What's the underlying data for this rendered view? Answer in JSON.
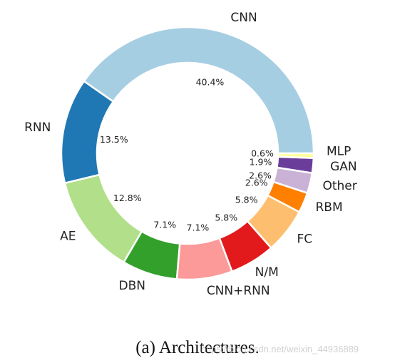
{
  "caption": "(a) Architectures.",
  "watermark": "https://blog.csdn.net/weixin_44936889",
  "chart_data": {
    "type": "pie",
    "subtype": "donut",
    "title": "",
    "start_angle_deg": 0,
    "direction": "counterclockwise",
    "slices": [
      {
        "label": "CNN",
        "value": 40.4,
        "pct_label": "40.4%",
        "color": "#a6cee3"
      },
      {
        "label": "RNN",
        "value": 13.5,
        "pct_label": "13.5%",
        "color": "#1f78b4"
      },
      {
        "label": "AE",
        "value": 12.8,
        "pct_label": "12.8%",
        "color": "#b2df8a"
      },
      {
        "label": "DBN",
        "value": 7.1,
        "pct_label": "7.1%",
        "color": "#33a02c"
      },
      {
        "label": "CNN+RNN",
        "value": 7.1,
        "pct_label": "7.1%",
        "color": "#fb9a99"
      },
      {
        "label": "N/M",
        "value": 5.8,
        "pct_label": "5.8%",
        "color": "#e31a1c"
      },
      {
        "label": "FC",
        "value": 5.8,
        "pct_label": "5.8%",
        "color": "#fdbf6f"
      },
      {
        "label": "RBM",
        "value": 2.6,
        "pct_label": "2.6%",
        "color": "#ff7f00"
      },
      {
        "label": "Other",
        "value": 2.6,
        "pct_label": "2.6%",
        "color": "#cab2d6"
      },
      {
        "label": "GAN",
        "value": 1.9,
        "pct_label": "1.9%",
        "color": "#6a3d9a"
      },
      {
        "label": "MLP",
        "value": 0.6,
        "pct_label": "0.6%",
        "color": "#ffff99"
      }
    ]
  }
}
